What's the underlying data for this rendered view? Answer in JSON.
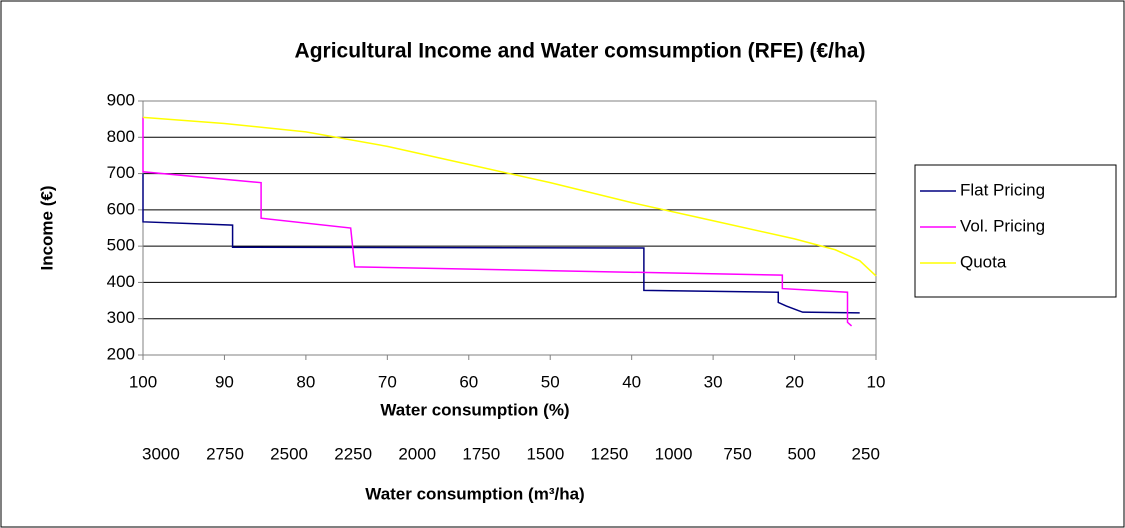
{
  "chart_data": {
    "type": "line",
    "title": "Agricultural Income and Water comsumption (RFE) (€/ha)",
    "x_label": "Water consumption (%)",
    "x2_label": "Water consumption (m³/ha)",
    "y_label": "Income (€)",
    "xlim": [
      100,
      10
    ],
    "xticks": [
      100,
      90,
      80,
      70,
      60,
      50,
      40,
      30,
      20,
      10
    ],
    "x2lim": [
      3070,
      210
    ],
    "x2ticks": [
      3000,
      2750,
      2500,
      2250,
      2000,
      1750,
      1500,
      1250,
      1000,
      750,
      500,
      250
    ],
    "ylim": [
      200,
      900
    ],
    "yticks": [
      200,
      300,
      400,
      500,
      600,
      700,
      800,
      900
    ],
    "grid": true,
    "legend": "right",
    "series": [
      {
        "name": "Flat Pricing",
        "color": "#000080",
        "x": [
          100,
          100,
          89,
          89,
          38.5,
          38.5,
          22,
          22,
          21,
          19.5,
          19,
          12
        ],
        "values": [
          700,
          567,
          558,
          497,
          495,
          378,
          373,
          345,
          335,
          322,
          318,
          316
        ]
      },
      {
        "name": "Vol. Pricing",
        "color": "#ff00ff",
        "x": [
          100,
          100,
          85.5,
          85.5,
          74.5,
          74,
          21.5,
          21.5,
          13.5,
          13.5,
          13
        ],
        "values": [
          855,
          705,
          675,
          577,
          550,
          443,
          420,
          383,
          373,
          290,
          280
        ]
      },
      {
        "name": "Quota",
        "color": "#ffff00",
        "x": [
          100,
          90,
          80,
          70,
          60,
          50,
          40,
          30,
          20,
          15,
          12,
          10
        ],
        "values": [
          855,
          838,
          815,
          775,
          725,
          675,
          620,
          570,
          520,
          490,
          460,
          418
        ]
      }
    ]
  }
}
